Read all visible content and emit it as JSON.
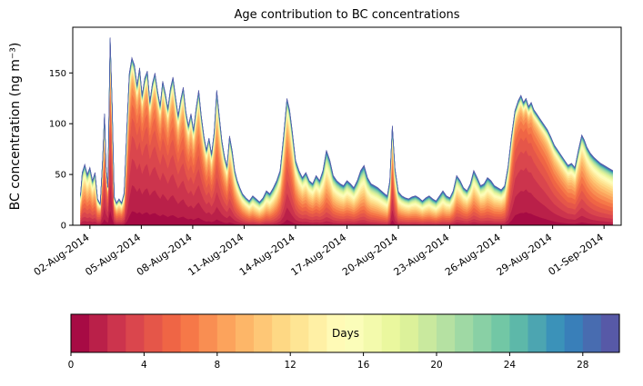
{
  "colors": {
    "background": "#ffffff",
    "axis": "#000000",
    "text": "#000000"
  },
  "chart_data": {
    "type": "stacked-area",
    "title": "Age contribution to BC concentrations",
    "ylabel": "BC concentration (ng m⁻³)",
    "ylim": [
      0,
      195
    ],
    "yticks": [
      0,
      50,
      100,
      150
    ],
    "xlim_days": [
      0,
      32
    ],
    "xtick_days": [
      1,
      4,
      7,
      10,
      13,
      16,
      19,
      22,
      25,
      28,
      31
    ],
    "xtick_labels": [
      "02-Aug-2014",
      "05-Aug-2014",
      "08-Aug-2014",
      "11-Aug-2014",
      "14-Aug-2014",
      "17-Aug-2014",
      "20-Aug-2014",
      "23-Aug-2014",
      "26-Aug-2014",
      "29-Aug-2014",
      "01-Sep-2014"
    ],
    "age_bins": 30,
    "colorbar": {
      "label": "Days",
      "ticks": [
        0,
        4,
        8,
        12,
        16,
        20,
        24,
        28
      ],
      "range": [
        0,
        30
      ]
    },
    "colormap": {
      "name": "Spectral",
      "anchors": [
        "#9e0142",
        "#d53e4f",
        "#f46d43",
        "#fdae61",
        "#fee08b",
        "#ffffbf",
        "#e6f598",
        "#abdda4",
        "#66c2a5",
        "#3288bd",
        "#5e4fa2"
      ]
    },
    "age_model": {
      "young_shape": 2,
      "old_mean": 20,
      "old_fraction_min": 0.12,
      "old_fraction_max": 0.34
    },
    "series": {
      "x_days": [
        0.45,
        0.55,
        0.7,
        0.85,
        1,
        1.15,
        1.3,
        1.45,
        1.6,
        1.75,
        1.85,
        1.95,
        2.05,
        2.18,
        2.3,
        2.42,
        2.55,
        2.7,
        2.85,
        3,
        3.15,
        3.3,
        3.45,
        3.6,
        3.75,
        3.9,
        4.05,
        4.2,
        4.35,
        4.5,
        4.65,
        4.8,
        4.95,
        5.1,
        5.25,
        5.4,
        5.55,
        5.7,
        5.85,
        6,
        6.15,
        6.3,
        6.45,
        6.6,
        6.75,
        6.9,
        7.05,
        7.2,
        7.35,
        7.5,
        7.65,
        7.8,
        7.95,
        8.1,
        8.25,
        8.4,
        8.55,
        8.7,
        8.85,
        9,
        9.15,
        9.3,
        9.45,
        9.6,
        9.75,
        9.9,
        10.1,
        10.3,
        10.5,
        10.7,
        10.9,
        11.1,
        11.3,
        11.5,
        11.7,
        11.9,
        12.1,
        12.3,
        12.5,
        12.65,
        12.8,
        13,
        13.2,
        13.4,
        13.6,
        13.8,
        14,
        14.2,
        14.4,
        14.6,
        14.8,
        15,
        15.2,
        15.4,
        15.6,
        15.8,
        16,
        16.2,
        16.4,
        16.6,
        16.8,
        17,
        17.2,
        17.4,
        17.6,
        17.8,
        18,
        18.2,
        18.35,
        18.5,
        18.65,
        18.8,
        19,
        19.2,
        19.4,
        19.6,
        19.8,
        20,
        20.2,
        20.4,
        20.6,
        20.8,
        21,
        21.2,
        21.4,
        21.6,
        21.8,
        22,
        22.2,
        22.4,
        22.6,
        22.8,
        23,
        23.2,
        23.4,
        23.6,
        23.8,
        24,
        24.2,
        24.4,
        24.6,
        24.8,
        25,
        25.2,
        25.4,
        25.6,
        25.8,
        26,
        26.15,
        26.3,
        26.45,
        26.6,
        26.75,
        26.9,
        27.1,
        27.3,
        27.5,
        27.7,
        27.9,
        28.1,
        28.3,
        28.5,
        28.7,
        28.9,
        29.1,
        29.3,
        29.5,
        29.7,
        29.85,
        30,
        30.2,
        30.4,
        30.6,
        30.8,
        31,
        31.2,
        31.4,
        31.5
      ],
      "total": [
        30,
        52,
        60,
        50,
        57,
        44,
        52,
        26,
        21,
        68,
        110,
        58,
        38,
        185,
        120,
        28,
        22,
        26,
        22,
        32,
        95,
        150,
        165,
        158,
        138,
        155,
        128,
        145,
        152,
        122,
        140,
        150,
        132,
        118,
        142,
        130,
        115,
        135,
        146,
        126,
        108,
        124,
        136,
        112,
        98,
        110,
        94,
        116,
        133,
        108,
        88,
        74,
        86,
        70,
        92,
        133,
        108,
        84,
        68,
        58,
        88,
        74,
        54,
        44,
        37,
        31,
        27,
        24,
        29,
        26,
        23,
        27,
        34,
        31,
        37,
        44,
        54,
        88,
        125,
        114,
        94,
        64,
        54,
        47,
        52,
        44,
        41,
        49,
        44,
        54,
        74,
        64,
        49,
        44,
        41,
        39,
        44,
        41,
        37,
        44,
        54,
        59,
        47,
        41,
        39,
        37,
        34,
        31,
        29,
        44,
        98,
        56,
        33,
        29,
        27,
        26,
        28,
        29,
        27,
        24,
        27,
        29,
        26,
        24,
        29,
        34,
        29,
        27,
        34,
        49,
        44,
        37,
        34,
        41,
        54,
        47,
        39,
        41,
        47,
        44,
        39,
        37,
        35,
        39,
        58,
        88,
        113,
        123,
        128,
        121,
        125,
        117,
        121,
        114,
        109,
        104,
        99,
        94,
        87,
        79,
        74,
        69,
        64,
        59,
        61,
        57,
        74,
        89,
        84,
        77,
        71,
        67,
        64,
        61,
        59,
        57,
        55,
        54
      ],
      "mean_age_points": [
        [
          0.45,
          8
        ],
        [
          1.4,
          8
        ],
        [
          1.8,
          5
        ],
        [
          2.2,
          4
        ],
        [
          2.6,
          8
        ],
        [
          3,
          7
        ],
        [
          3.4,
          4
        ],
        [
          4.5,
          4
        ],
        [
          6,
          4.5
        ],
        [
          7.5,
          5
        ],
        [
          9,
          6
        ],
        [
          9.8,
          8
        ],
        [
          10.8,
          11
        ],
        [
          11.8,
          10
        ],
        [
          12.5,
          5.5
        ],
        [
          13.2,
          8
        ],
        [
          14.5,
          9
        ],
        [
          15.5,
          10
        ],
        [
          16.5,
          10
        ],
        [
          17.5,
          11
        ],
        [
          18.4,
          12
        ],
        [
          18.65,
          5
        ],
        [
          19,
          10
        ],
        [
          20.5,
          11
        ],
        [
          21.5,
          12
        ],
        [
          22.4,
          9
        ],
        [
          23.4,
          9
        ],
        [
          24.5,
          10
        ],
        [
          25.2,
          9
        ],
        [
          25.7,
          4
        ],
        [
          26.5,
          3.5
        ],
        [
          27.5,
          4.5
        ],
        [
          28.5,
          6
        ],
        [
          29.2,
          7
        ],
        [
          29.7,
          6.5
        ],
        [
          30.5,
          8
        ],
        [
          31.5,
          9
        ]
      ]
    }
  }
}
